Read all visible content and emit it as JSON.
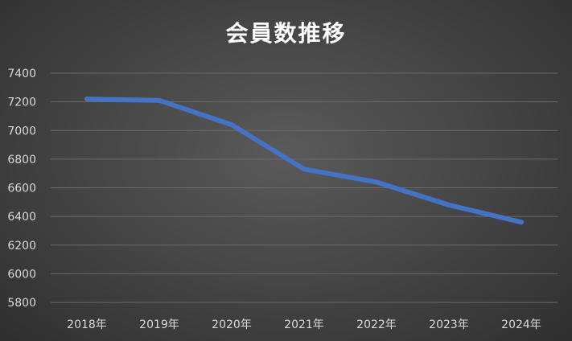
{
  "chart_data": {
    "type": "line",
    "title": "会員数推移",
    "categories": [
      "2018年",
      "2019年",
      "2020年",
      "2021年",
      "2022年",
      "2023年",
      "2024年"
    ],
    "series": [
      {
        "values": [
          7220,
          7210,
          7040,
          6730,
          6640,
          6480,
          6360
        ]
      }
    ],
    "ylim": [
      5800,
      7400
    ],
    "yticks": [
      5800,
      6000,
      6200,
      6400,
      6600,
      6800,
      7000,
      7200,
      7400
    ],
    "grid": true,
    "line_color": "#4472c4",
    "gridline_color": "#6a6a6a",
    "background_color": "#474747"
  }
}
